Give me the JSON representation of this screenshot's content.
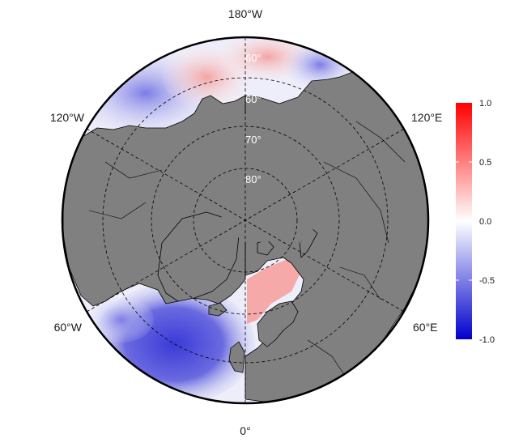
{
  "map": {
    "projection": "north-polar-stereographic",
    "ocean_anomaly_colors": {
      "negative": "#0000cc",
      "zero": "#ffffff",
      "positive": "#ff0000",
      "land": "#808080",
      "coastline": "#000000"
    },
    "longitude_labels": {
      "top": "180°W",
      "bottom": "0°",
      "upper_left": "120°W",
      "upper_right": "120°E",
      "lower_left": "60°W",
      "lower_right": "60°E"
    },
    "latitude_labels": {
      "lat60": "60°",
      "lat70": "70°",
      "lat80": "80°"
    },
    "grid": "dashed"
  },
  "colorbar": {
    "ticks": [
      "1.0",
      "0.5",
      "0.0",
      "-0.5",
      "-1.0"
    ],
    "range": [
      -1.0,
      1.0
    ],
    "colors": [
      "#0000cc",
      "#ffffff",
      "#ff0000"
    ]
  }
}
